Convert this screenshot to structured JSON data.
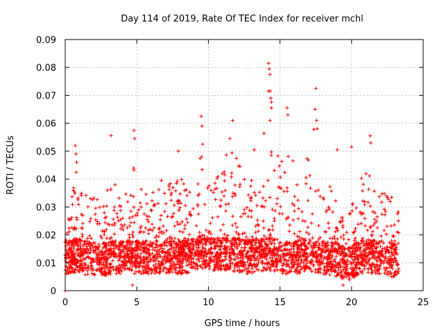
{
  "chart_data": {
    "type": "scatter",
    "title": "Day 114 of 2019, Rate Of TEC Index for receiver mchl",
    "xlabel": "GPS time / hours",
    "ylabel": "ROTI / TECUs",
    "xlim": [
      0,
      25
    ],
    "ylim": [
      0,
      0.09
    ],
    "x_ticks": [
      "0",
      "5",
      "10",
      "15",
      "20",
      "25"
    ],
    "y_ticks": [
      "0",
      "0.01",
      "0.02",
      "0.03",
      "0.04",
      "0.05",
      "0.06",
      "0.07",
      "0.08",
      "0.09"
    ],
    "grid": true,
    "marker": "+",
    "color": "#ff0000",
    "series": [
      {
        "name": "ROTI",
        "envelope": {
          "x": [
            0,
            0.5,
            0.8,
            1.2,
            2.0,
            2.5,
            3.2,
            4.0,
            4.8,
            5.5,
            6.5,
            7.5,
            8.5,
            9.5,
            10.5,
            11.8,
            12.8,
            13.5,
            14.3,
            14.6,
            15.0,
            15.5,
            16.3,
            17.0,
            17.6,
            18.0,
            19.0,
            19.7,
            20.5,
            21.3,
            22.0,
            22.8,
            23.3
          ],
          "baseline": [
            0.012,
            0.012,
            0.013,
            0.012,
            0.011,
            0.011,
            0.012,
            0.012,
            0.012,
            0.012,
            0.012,
            0.012,
            0.012,
            0.014,
            0.013,
            0.013,
            0.012,
            0.013,
            0.013,
            0.013,
            0.012,
            0.012,
            0.012,
            0.013,
            0.012,
            0.012,
            0.011,
            0.009,
            0.012,
            0.012,
            0.012,
            0.011,
            0.011
          ],
          "upper": [
            0.025,
            0.035,
            0.05,
            0.035,
            0.035,
            0.03,
            0.04,
            0.035,
            0.045,
            0.035,
            0.04,
            0.04,
            0.04,
            0.055,
            0.04,
            0.055,
            0.04,
            0.04,
            0.075,
            0.06,
            0.045,
            0.06,
            0.04,
            0.05,
            0.065,
            0.04,
            0.035,
            0.025,
            0.04,
            0.045,
            0.035,
            0.035,
            0.03
          ]
        },
        "outliers": [
          [
            0.7,
            0.052
          ],
          [
            0.75,
            0.049
          ],
          [
            0.8,
            0.046
          ],
          [
            3.2,
            0.0556
          ],
          [
            4.8,
            0.0574
          ],
          [
            4.85,
            0.0545
          ],
          [
            7.9,
            0.05
          ],
          [
            9.5,
            0.0625
          ],
          [
            9.55,
            0.059
          ],
          [
            9.6,
            0.0525
          ],
          [
            11.5,
            0.0545
          ],
          [
            11.7,
            0.061
          ],
          [
            13.2,
            0.0505
          ],
          [
            14.2,
            0.0815
          ],
          [
            14.25,
            0.0795
          ],
          [
            14.3,
            0.0775
          ],
          [
            14.2,
            0.0715
          ],
          [
            14.35,
            0.069
          ],
          [
            14.4,
            0.0655
          ],
          [
            14.3,
            0.061
          ],
          [
            15.5,
            0.0655
          ],
          [
            15.55,
            0.063
          ],
          [
            17.5,
            0.0725
          ],
          [
            17.45,
            0.065
          ],
          [
            17.55,
            0.061
          ],
          [
            17.6,
            0.058
          ],
          [
            19.0,
            0.0505
          ],
          [
            20.0,
            0.0515
          ],
          [
            21.3,
            0.0555
          ],
          [
            21.35,
            0.053
          ],
          [
            0.0,
            0.0
          ],
          [
            4.7,
            0.002
          ],
          [
            19.4,
            0.002
          ]
        ]
      }
    ]
  }
}
